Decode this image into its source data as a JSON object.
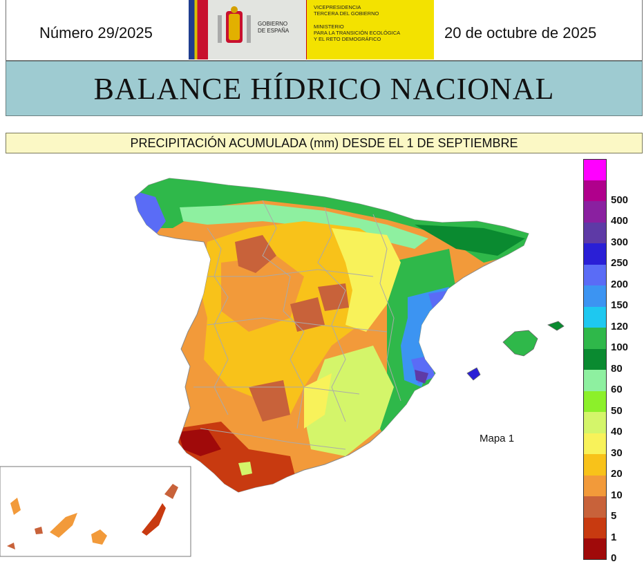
{
  "header": {
    "issue": "Número 29/2025",
    "date": "20 de octubre de 2025",
    "logo": {
      "gov_line1": "GOBIERNO",
      "gov_line2": "DE ESPAÑA",
      "min_line1": "VICEPRESIDENCIA",
      "min_line2": "TERCERA DEL GOBIERNO",
      "min_line3": "MINISTERIO",
      "min_line4": "PARA LA TRANSICIÓN ECOLÓGICA",
      "min_line5": "Y EL RETO DEMOGRÁFICO"
    }
  },
  "title": "BALANCE HÍDRICO NACIONAL",
  "subtitle": "PRECIPITACIÓN ACUMULADA (mm) DESDE EL 1 DE SEPTIEMBRE",
  "map": {
    "label": "Mapa 1"
  },
  "legend": {
    "items": [
      {
        "label": "",
        "color": "#ff00ff"
      },
      {
        "label": "500",
        "color": "#b0008c"
      },
      {
        "label": "400",
        "color": "#8a20a0"
      },
      {
        "label": "300",
        "color": "#5e3aa6"
      },
      {
        "label": "250",
        "color": "#2a1fd6"
      },
      {
        "label": "200",
        "color": "#5a6cf6"
      },
      {
        "label": "150",
        "color": "#3c94f2"
      },
      {
        "label": "120",
        "color": "#1ec8f0"
      },
      {
        "label": "100",
        "color": "#2fb84a"
      },
      {
        "label": "80",
        "color": "#0a8a30"
      },
      {
        "label": "60",
        "color": "#8ef0a0"
      },
      {
        "label": "50",
        "color": "#8cf02a"
      },
      {
        "label": "40",
        "color": "#d4f56a"
      },
      {
        "label": "30",
        "color": "#f8f25a"
      },
      {
        "label": "20",
        "color": "#f8c21a"
      },
      {
        "label": "10",
        "color": "#f29a3a"
      },
      {
        "label": "5",
        "color": "#c8623a"
      },
      {
        "label": "1",
        "color": "#c83a10"
      },
      {
        "label": "0",
        "color": "#a00a0a"
      }
    ]
  }
}
